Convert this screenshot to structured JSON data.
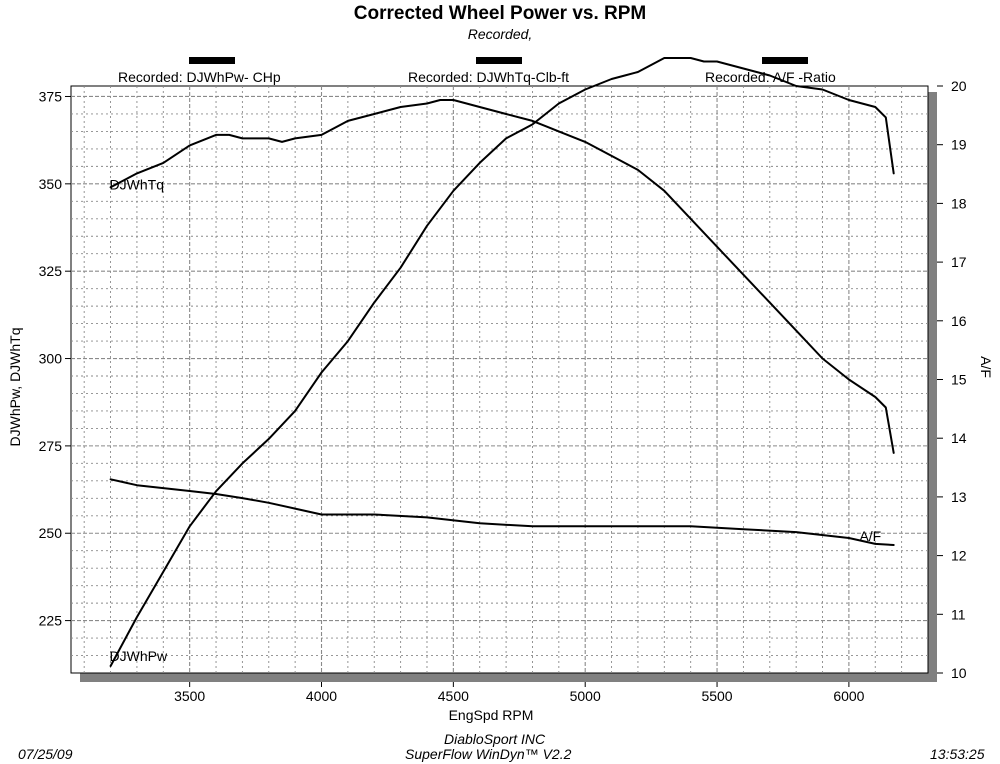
{
  "header": {
    "title": "Corrected Wheel Power vs. RPM",
    "subtitle": "Recorded,"
  },
  "legend": [
    {
      "label": "Recorded: DJWhPw- CHp",
      "has_swatch": true
    },
    {
      "label": "Recorded: DJWhTq-Clb-ft",
      "has_swatch": true
    },
    {
      "label": "Recorded:  A/F  -Ratio",
      "has_swatch": true
    }
  ],
  "footer": {
    "date": "07/25/09",
    "company": "DiabloSport INC",
    "software": "SuperFlow WinDyn™ V2.2",
    "time": "13:53:25"
  },
  "colors": {
    "background": "#ffffff",
    "plot_background": "#ffffff",
    "grid": "#8a8a8a",
    "line": "#000000",
    "frame_shadow": "#808080"
  },
  "chart_data": {
    "type": "line",
    "title": "Corrected Wheel Power vs. RPM",
    "subtitle": "Recorded,",
    "xlabel": "EngSpd  RPM",
    "ylabel_left": "DJWhPw,  DJWhTq",
    "ylabel_right": "A/F",
    "xlim": [
      3050,
      6300
    ],
    "ylim_left": [
      210,
      378
    ],
    "ylim_right": [
      10,
      20
    ],
    "x_ticks": [
      3500,
      4000,
      4500,
      5000,
      5500,
      6000
    ],
    "y_left_ticks": [
      225,
      250,
      275,
      300,
      325,
      350,
      375
    ],
    "y_right_ticks": [
      10,
      11,
      12,
      13,
      14,
      15,
      16,
      17,
      18,
      19,
      20
    ],
    "grid": true,
    "series": [
      {
        "name": "DJWhPw",
        "axis": "left",
        "x": [
          3200,
          3300,
          3400,
          3500,
          3600,
          3700,
          3800,
          3900,
          4000,
          4100,
          4200,
          4300,
          4400,
          4500,
          4600,
          4700,
          4800,
          4900,
          5000,
          5100,
          5150,
          5200,
          5250,
          5300,
          5350,
          5400,
          5450,
          5500,
          5600,
          5700,
          5800,
          5900,
          6000,
          6100,
          6140,
          6170
        ],
        "values": [
          212,
          226,
          239,
          252,
          262,
          270,
          277,
          285,
          296,
          305,
          316,
          326,
          338,
          348,
          356,
          363,
          367,
          373,
          377,
          380,
          381,
          382,
          384,
          386,
          386,
          386,
          385,
          385,
          383,
          381,
          378,
          377,
          374,
          372,
          369,
          353
        ]
      },
      {
        "name": "DJWhTq",
        "axis": "left",
        "x": [
          3200,
          3300,
          3400,
          3500,
          3600,
          3650,
          3700,
          3800,
          3850,
          3900,
          4000,
          4100,
          4200,
          4300,
          4400,
          4450,
          4500,
          4600,
          4700,
          4800,
          4900,
          5000,
          5100,
          5200,
          5300,
          5400,
          5500,
          5600,
          5700,
          5800,
          5900,
          6000,
          6100,
          6140,
          6170
        ],
        "values": [
          349,
          353,
          356,
          361,
          364,
          364,
          363,
          363,
          362,
          363,
          364,
          368,
          370,
          372,
          373,
          374,
          374,
          372,
          370,
          368,
          365,
          362,
          358,
          354,
          348,
          340,
          332,
          324,
          316,
          308,
          300,
          294,
          289,
          286,
          273
        ]
      },
      {
        "name": "A/F",
        "axis": "right",
        "x": [
          3200,
          3300,
          3400,
          3500,
          3600,
          3700,
          3800,
          3900,
          4000,
          4200,
          4400,
          4600,
          4800,
          5000,
          5200,
          5400,
          5600,
          5800,
          6000,
          6100,
          6170
        ],
        "values": [
          13.3,
          13.2,
          13.15,
          13.1,
          13.05,
          12.98,
          12.9,
          12.8,
          12.7,
          12.7,
          12.65,
          12.55,
          12.5,
          12.5,
          12.5,
          12.5,
          12.45,
          12.4,
          12.3,
          12.2,
          12.18
        ]
      }
    ],
    "annotations": [
      "DJWhTq",
      "DJWhPw",
      "A/F"
    ]
  }
}
